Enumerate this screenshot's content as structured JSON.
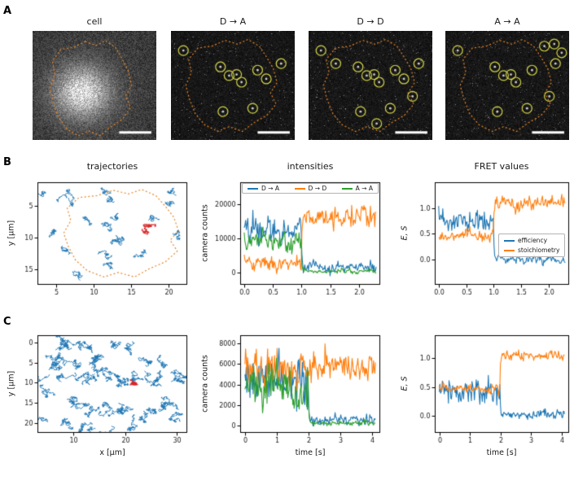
{
  "panel_labels": {
    "a": "A",
    "b": "B",
    "c": "C"
  },
  "colors": {
    "blue": "#1f77b4",
    "orange": "#ff7f0e",
    "green": "#2ca02c",
    "red": "#d62728",
    "outline": "#e8872a",
    "circle": "#d4d44a",
    "axis": "#000000",
    "tick_text": "#1a1a1a",
    "scalebar": "#ffffff"
  },
  "cell_outline": [
    [
      0.42,
      0.02
    ],
    [
      0.55,
      0.06
    ],
    [
      0.66,
      0.01
    ],
    [
      0.78,
      0.08
    ],
    [
      0.86,
      0.2
    ],
    [
      0.93,
      0.32
    ],
    [
      0.97,
      0.47
    ],
    [
      0.9,
      0.58
    ],
    [
      0.96,
      0.7
    ],
    [
      0.86,
      0.82
    ],
    [
      0.72,
      0.9
    ],
    [
      0.6,
      0.99
    ],
    [
      0.46,
      0.94
    ],
    [
      0.34,
      0.99
    ],
    [
      0.2,
      0.92
    ],
    [
      0.1,
      0.8
    ],
    [
      0.04,
      0.65
    ],
    [
      0.0,
      0.5
    ],
    [
      0.06,
      0.36
    ],
    [
      0.03,
      0.22
    ],
    [
      0.13,
      0.1
    ],
    [
      0.28,
      0.08
    ]
  ],
  "panel_a": {
    "images": [
      {
        "title": "cell",
        "kind": "cell",
        "seed": 11,
        "outline_bbox": [
          0.14,
          0.08,
          0.82,
          0.97
        ]
      },
      {
        "title": "D → A",
        "kind": "spots",
        "seed": 12,
        "outline_bbox": [
          0.12,
          0.07,
          0.88,
          0.93
        ],
        "spots": [
          [
            0.1,
            0.18
          ],
          [
            0.4,
            0.33
          ],
          [
            0.47,
            0.41
          ],
          [
            0.53,
            0.4
          ],
          [
            0.57,
            0.47
          ],
          [
            0.7,
            0.36
          ],
          [
            0.77,
            0.44
          ],
          [
            0.89,
            0.3
          ],
          [
            0.42,
            0.74
          ],
          [
            0.66,
            0.71
          ]
        ]
      },
      {
        "title": "D → D",
        "kind": "spots",
        "seed": 13,
        "outline_bbox": [
          0.12,
          0.07,
          0.88,
          0.93
        ],
        "spots": [
          [
            0.1,
            0.18
          ],
          [
            0.22,
            0.3
          ],
          [
            0.4,
            0.33
          ],
          [
            0.47,
            0.41
          ],
          [
            0.53,
            0.4
          ],
          [
            0.57,
            0.47
          ],
          [
            0.7,
            0.36
          ],
          [
            0.77,
            0.44
          ],
          [
            0.89,
            0.3
          ],
          [
            0.42,
            0.74
          ],
          [
            0.66,
            0.71
          ],
          [
            0.84,
            0.6
          ],
          [
            0.55,
            0.85
          ]
        ]
      },
      {
        "title": "A → A",
        "kind": "spots",
        "seed": 14,
        "outline_bbox": [
          0.12,
          0.07,
          0.88,
          0.93
        ],
        "spots": [
          [
            0.1,
            0.18
          ],
          [
            0.4,
            0.33
          ],
          [
            0.47,
            0.41
          ],
          [
            0.53,
            0.4
          ],
          [
            0.57,
            0.47
          ],
          [
            0.7,
            0.36
          ],
          [
            0.89,
            0.3
          ],
          [
            0.42,
            0.74
          ],
          [
            0.66,
            0.71
          ],
          [
            0.8,
            0.14
          ],
          [
            0.88,
            0.12
          ],
          [
            0.94,
            0.2
          ],
          [
            0.84,
            0.6
          ]
        ]
      }
    ],
    "scalebar": {
      "rel_x": 0.7,
      "rel_y": 0.92,
      "rel_w": 0.26,
      "h": 3
    }
  },
  "legend_intensities": {
    "items": [
      {
        "label": "D → A",
        "color": "blue"
      },
      {
        "label": "D → D",
        "color": "orange"
      },
      {
        "label": "A → A",
        "color": "green"
      }
    ]
  },
  "legend_fret": {
    "items": [
      {
        "label": "efficiency",
        "color": "blue"
      },
      {
        "label": "stoichiometry",
        "color": "orange"
      }
    ]
  },
  "chart_data": [
    {
      "id": "b-trajectories",
      "type": "scatter",
      "title": "trajectories",
      "xlabel": "",
      "ylabel": "y [μm]",
      "seed": 21,
      "xlim": [
        2.5,
        22.5
      ],
      "ylim": [
        1.2,
        17.5
      ],
      "invert_y": true,
      "xticks": {
        "values": [
          5,
          10,
          15,
          20
        ],
        "labels": [
          "5",
          "10",
          "15",
          "20"
        ]
      },
      "yticks": {
        "values": [
          5,
          10,
          15
        ],
        "labels": [
          "5",
          "10",
          "15"
        ]
      },
      "outline_bbox": [
        6.0,
        2.2,
        21.8,
        16.4
      ],
      "walk_steps": 40,
      "walk_step": 0.28,
      "starts": [
        [
          3.6,
          2.8
        ],
        [
          5.2,
          4.1
        ],
        [
          6.9,
          3.1
        ],
        [
          11.9,
          2.7
        ],
        [
          13.1,
          3.9
        ],
        [
          19.7,
          4.7
        ],
        [
          20.9,
          3.3
        ],
        [
          9.1,
          6.3
        ],
        [
          12.3,
          6.9
        ],
        [
          11.5,
          8.7
        ],
        [
          12.1,
          10.3
        ],
        [
          11.3,
          11.7
        ],
        [
          13.7,
          9.7
        ],
        [
          18.5,
          7.3
        ],
        [
          20.7,
          8.9
        ],
        [
          15.9,
          13.3
        ],
        [
          8.1,
          15.9
        ],
        [
          13.1,
          15.1
        ],
        [
          4.1,
          9.6
        ],
        [
          6.3,
          12.4
        ]
      ],
      "red": {
        "start": [
          16.7,
          9.3
        ],
        "steps": 90,
        "step": 0.22
      }
    },
    {
      "id": "b-intensities",
      "type": "line",
      "title": "intensities",
      "xlabel": "",
      "ylabel": "camera counts",
      "seed": 22,
      "xlim": [
        -0.07,
        2.37
      ],
      "ylim": [
        -3500,
        26500
      ],
      "t_end": 2.3,
      "n": 184,
      "switch_time": 1.0,
      "xticks": {
        "values": [
          0,
          0.5,
          1,
          1.5,
          2
        ],
        "labels": [
          "0.0",
          "0.5",
          "1.0",
          "1.5",
          "2.0"
        ]
      },
      "yticks": {
        "values": [
          0,
          10000,
          20000
        ],
        "labels": [
          "0",
          "10000",
          "20000"
        ]
      },
      "series": [
        {
          "name": "D → A",
          "color": "blue",
          "before": [
            13000,
            2600
          ],
          "after": [
            1600,
            1100
          ]
        },
        {
          "name": "D → D",
          "color": "orange",
          "before": [
            2600,
            1500
          ],
          "after": [
            16500,
            2300
          ]
        },
        {
          "name": "A → A",
          "color": "green",
          "before": [
            9000,
            2200
          ],
          "after": [
            450,
            450
          ]
        }
      ]
    },
    {
      "id": "b-fret",
      "type": "line",
      "title": "FRET values",
      "xlabel": "",
      "ylabel": "E, S",
      "seed": 23,
      "xlim": [
        -0.07,
        2.37
      ],
      "ylim": [
        -0.5,
        1.5
      ],
      "t_end": 2.3,
      "n": 184,
      "switch_time": 1.0,
      "xticks": {
        "values": [
          0,
          0.5,
          1,
          1.5,
          2
        ],
        "labels": [
          "0.0",
          "0.5",
          "1.0",
          "1.5",
          "2.0"
        ]
      },
      "yticks": {
        "values": [
          0,
          0.5,
          1
        ],
        "labels": [
          "0.0",
          "0.5",
          "1.0"
        ]
      },
      "series": [
        {
          "name": "efficiency",
          "color": "blue",
          "before": [
            0.72,
            0.16
          ],
          "after": [
            0.0,
            0.06
          ]
        },
        {
          "name": "stoichiometry",
          "color": "orange",
          "before": [
            0.45,
            0.07
          ],
          "after": [
            1.07,
            0.1
          ]
        }
      ]
    },
    {
      "id": "c-trajectories",
      "type": "scatter",
      "title": "",
      "xlabel": "x [μm]",
      "ylabel": "y [μm]",
      "seed": 24,
      "xlim": [
        3.0,
        32.0
      ],
      "ylim": [
        -1.8,
        22.5
      ],
      "invert_y": true,
      "xticks": {
        "values": [
          10,
          20,
          30
        ],
        "labels": [
          "10",
          "20",
          "30"
        ]
      },
      "yticks": {
        "values": [
          0,
          5,
          10,
          15,
          20
        ],
        "labels": [
          "0",
          "5",
          "10",
          "15",
          "20"
        ]
      },
      "walk_steps": 70,
      "walk_step": 0.38,
      "starts": [
        [
          5,
          3.5
        ],
        [
          6.5,
          1.5
        ],
        [
          8.5,
          0.8
        ],
        [
          10.5,
          0.3
        ],
        [
          12.5,
          1.8
        ],
        [
          7,
          5.5
        ],
        [
          9,
          4.8
        ],
        [
          11.2,
          5.8
        ],
        [
          13.5,
          4.6
        ],
        [
          15.5,
          3.8
        ],
        [
          5.5,
          8.5
        ],
        [
          7.8,
          9.8
        ],
        [
          10,
          8.8
        ],
        [
          12.2,
          9.9
        ],
        [
          14.5,
          8.7
        ],
        [
          16.5,
          9.8
        ],
        [
          18.5,
          8.8
        ],
        [
          20.5,
          10.2
        ],
        [
          23,
          9.2
        ],
        [
          25,
          10
        ],
        [
          27,
          8.8
        ],
        [
          29,
          9.8
        ],
        [
          30.5,
          8.6
        ],
        [
          6.8,
          13.2
        ],
        [
          8.8,
          14.3
        ],
        [
          11,
          15.2
        ],
        [
          13.2,
          16.3
        ],
        [
          15.2,
          17.2
        ],
        [
          17.3,
          18
        ],
        [
          19.2,
          17.2
        ],
        [
          21.2,
          18.3
        ],
        [
          23.2,
          19
        ],
        [
          25.2,
          17
        ],
        [
          27.2,
          15.8
        ],
        [
          29.2,
          14.8
        ],
        [
          30.2,
          19.5
        ],
        [
          5.2,
          19.8
        ],
        [
          9.2,
          20.3
        ],
        [
          13.2,
          20.1
        ],
        [
          17.2,
          20.8
        ],
        [
          24,
          4.5
        ],
        [
          27,
          3.5
        ],
        [
          21,
          2.5
        ],
        [
          18,
          1.5
        ]
      ],
      "red": {
        "start": [
          21.0,
          9.2
        ],
        "steps": 130,
        "step": 0.26
      }
    },
    {
      "id": "c-intensities",
      "type": "line",
      "title": "",
      "xlabel": "time [s]",
      "ylabel": "camera counts",
      "seed": 25,
      "xlim": [
        -0.15,
        4.25
      ],
      "ylim": [
        -700,
        8800
      ],
      "t_end": 4.1,
      "n": 208,
      "switch_time": 2.0,
      "xticks": {
        "values": [
          0,
          1,
          2,
          3,
          4
        ],
        "labels": [
          "0",
          "1",
          "2",
          "3",
          "4"
        ]
      },
      "yticks": {
        "values": [
          0,
          2000,
          4000,
          6000,
          8000
        ],
        "labels": [
          "0",
          "2000",
          "4000",
          "6000",
          "8000"
        ]
      },
      "series": [
        {
          "name": "D → A",
          "color": "blue",
          "before": [
            4200,
            1600
          ],
          "after": [
            600,
            350
          ]
        },
        {
          "name": "D → D",
          "color": "orange",
          "before": [
            5200,
            1300
          ],
          "after": [
            5800,
            900
          ]
        },
        {
          "name": "A → A",
          "color": "green",
          "before": [
            3800,
            1400
          ],
          "after": [
            260,
            180
          ]
        }
      ]
    },
    {
      "id": "c-fret",
      "type": "line",
      "title": "",
      "xlabel": "time [s]",
      "ylabel": "E, S",
      "seed": 26,
      "xlim": [
        -0.15,
        4.25
      ],
      "ylim": [
        -0.3,
        1.4
      ],
      "t_end": 4.1,
      "n": 208,
      "switch_time": 2.0,
      "xticks": {
        "values": [
          0,
          1,
          2,
          3,
          4
        ],
        "labels": [
          "0",
          "1",
          "2",
          "3",
          "4"
        ]
      },
      "yticks": {
        "values": [
          0,
          0.5,
          1
        ],
        "labels": [
          "0.0",
          "0.5",
          "1.0"
        ]
      },
      "series": [
        {
          "name": "efficiency",
          "color": "blue",
          "before": [
            0.42,
            0.16
          ],
          "after": [
            0.02,
            0.05
          ]
        },
        {
          "name": "stoichiometry",
          "color": "orange",
          "before": [
            0.47,
            0.05
          ],
          "after": [
            1.05,
            0.06
          ]
        }
      ]
    }
  ]
}
